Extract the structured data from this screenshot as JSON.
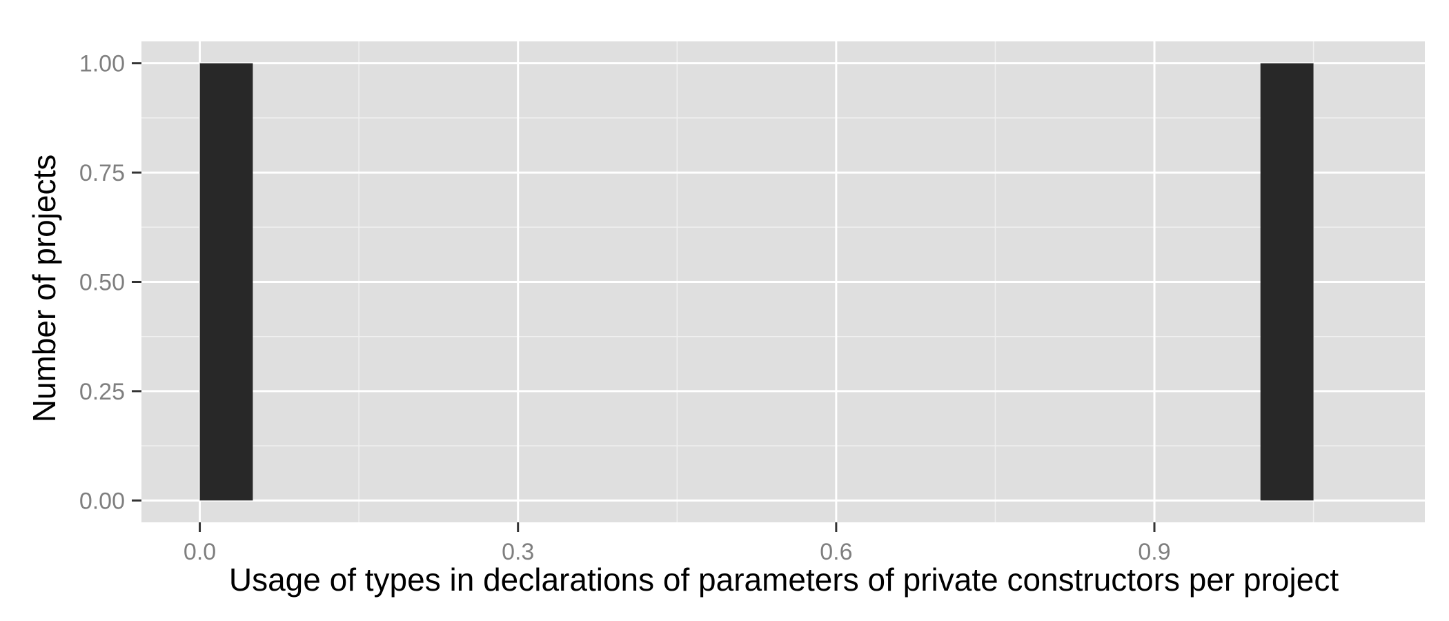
{
  "chart_data": {
    "type": "bar",
    "title": "",
    "xlabel": "Usage of types in declarations of parameters of private constructors per project",
    "ylabel": "Number of projects",
    "bins": [
      {
        "x_start": 0.0,
        "x_end": 0.05,
        "count": 1
      },
      {
        "x_start": 1.0,
        "x_end": 1.05,
        "count": 1
      }
    ],
    "xlim": [
      -0.055,
      1.155
    ],
    "ylim": [
      -0.05,
      1.05
    ],
    "x_ticks": [
      {
        "value": 0.0,
        "label": "0.0"
      },
      {
        "value": 0.3,
        "label": "0.3"
      },
      {
        "value": 0.6,
        "label": "0.6"
      },
      {
        "value": 0.9,
        "label": "0.9"
      }
    ],
    "y_ticks": [
      {
        "value": 0.0,
        "label": "0.00"
      },
      {
        "value": 0.25,
        "label": "0.25"
      },
      {
        "value": 0.5,
        "label": "0.50"
      },
      {
        "value": 0.75,
        "label": "0.75"
      },
      {
        "value": 1.0,
        "label": "1.00"
      }
    ],
    "x_minor_ticks": [
      0.15,
      0.45,
      0.75,
      1.05
    ],
    "y_minor_ticks": [
      0.125,
      0.375,
      0.625,
      0.875
    ],
    "grid": true,
    "legend": "none",
    "colors": {
      "panel": "#dfdfdf",
      "grid_major": "#ffffff",
      "grid_minor": "#f0f0f0",
      "bar": "#282828",
      "tick": "#333333"
    }
  }
}
